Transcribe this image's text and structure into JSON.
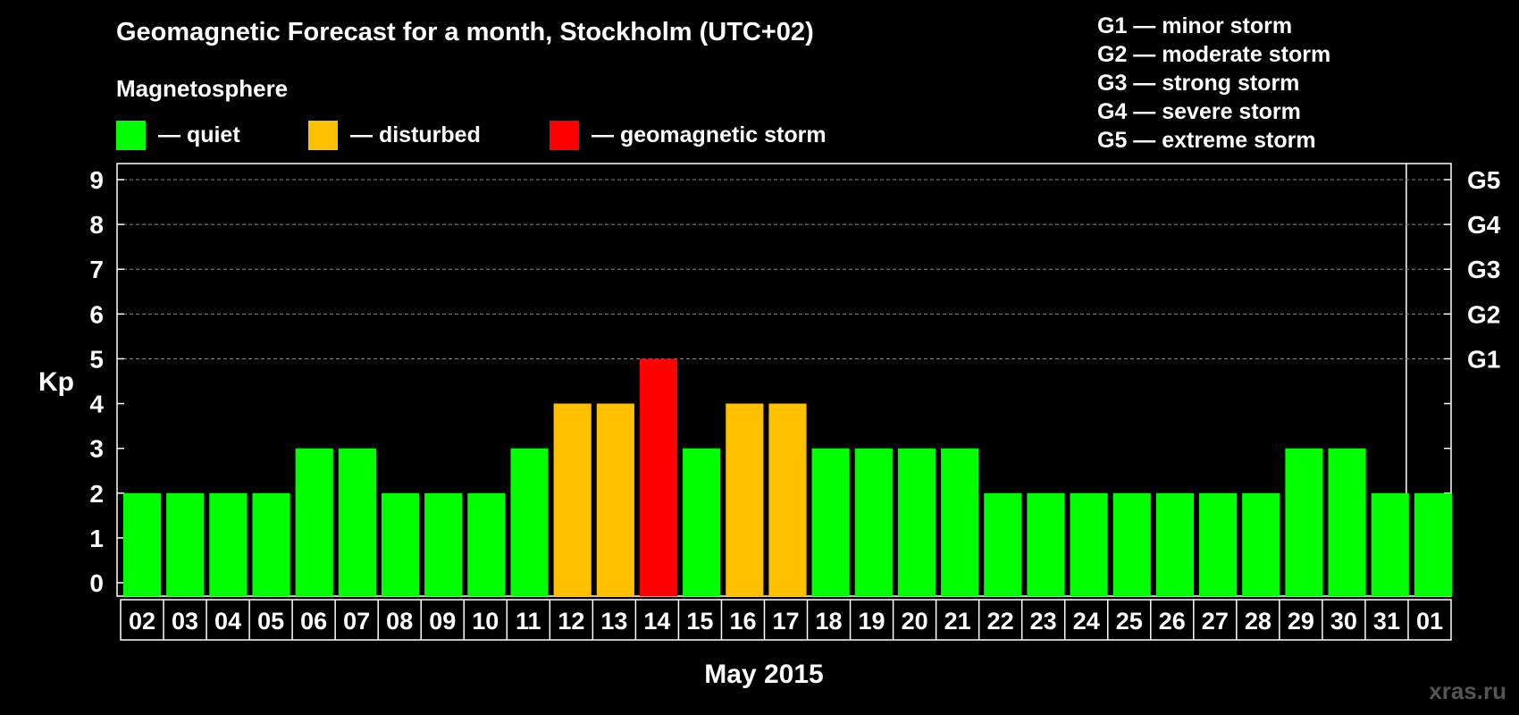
{
  "colors": {
    "quiet": "#00ff00",
    "disturbed": "#ffc000",
    "storm": "#ff0000",
    "background": "#000000"
  },
  "header": {
    "title": "Geomagnetic Forecast for a month, Stockholm (UTC+02)",
    "subtitle": "Magnetosphere"
  },
  "legend": [
    {
      "label": "— quiet",
      "color": "#00ff00"
    },
    {
      "label": "— disturbed",
      "color": "#ffc000"
    },
    {
      "label": "— geomagnetic storm",
      "color": "#ff0000"
    }
  ],
  "g_legend": [
    "G1 — minor storm",
    "G2 — moderate storm",
    "G3 — strong storm",
    "G4 — severe storm",
    "G5 — extreme storm"
  ],
  "watermark": "xras.ru",
  "chart_data": {
    "type": "bar",
    "title": "Geomagnetic Forecast for a month, Stockholm (UTC+02)",
    "xlabel": "May 2015",
    "ylabel": "Kp",
    "ylim": [
      0,
      9
    ],
    "yticks": [
      "0",
      "1",
      "2",
      "3",
      "4",
      "5",
      "6",
      "7",
      "8",
      "9"
    ],
    "right_axis": [
      {
        "kp": 5,
        "label": "G1"
      },
      {
        "kp": 6,
        "label": "G2"
      },
      {
        "kp": 7,
        "label": "G3"
      },
      {
        "kp": 8,
        "label": "G4"
      },
      {
        "kp": 9,
        "label": "G5"
      }
    ],
    "categories": [
      "02",
      "03",
      "04",
      "05",
      "06",
      "07",
      "08",
      "09",
      "10",
      "11",
      "12",
      "13",
      "14",
      "15",
      "16",
      "17",
      "18",
      "19",
      "20",
      "21",
      "22",
      "23",
      "24",
      "25",
      "26",
      "27",
      "28",
      "29",
      "30",
      "31",
      "01"
    ],
    "values": [
      2,
      2,
      2,
      2,
      3,
      3,
      2,
      2,
      2,
      3,
      4,
      4,
      5,
      3,
      4,
      4,
      3,
      3,
      3,
      3,
      2,
      2,
      2,
      2,
      2,
      2,
      2,
      3,
      3,
      2,
      2
    ],
    "levels": [
      "quiet",
      "quiet",
      "quiet",
      "quiet",
      "quiet",
      "quiet",
      "quiet",
      "quiet",
      "quiet",
      "quiet",
      "disturbed",
      "disturbed",
      "storm",
      "quiet",
      "disturbed",
      "disturbed",
      "quiet",
      "quiet",
      "quiet",
      "quiet",
      "quiet",
      "quiet",
      "quiet",
      "quiet",
      "quiet",
      "quiet",
      "quiet",
      "quiet",
      "quiet",
      "quiet",
      "quiet"
    ],
    "grid": true
  }
}
